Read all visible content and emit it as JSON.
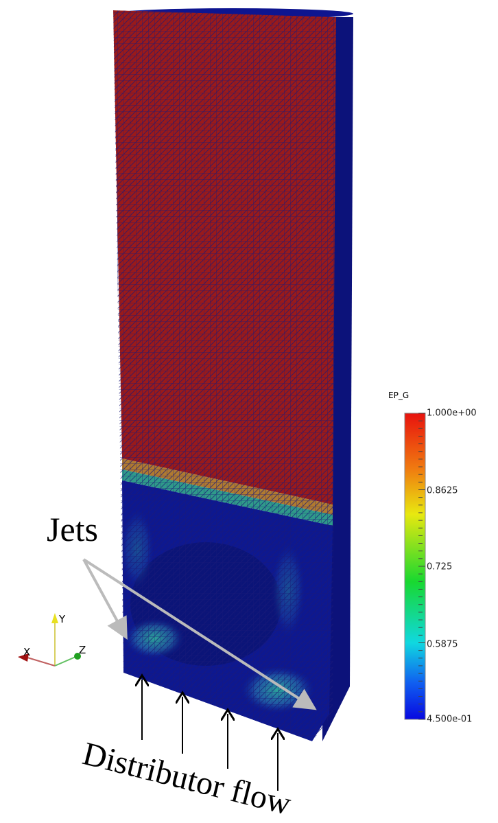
{
  "annotations": {
    "jets": "Jets",
    "distributor": "Distributor flow"
  },
  "colorbar": {
    "title": "EP_G",
    "labels": [
      "1.000e+00",
      "0.8625",
      "0.725",
      "0.5875",
      "4.500e-01"
    ]
  },
  "axes_triad": {
    "x": "X",
    "y": "Y",
    "z": "Z"
  }
}
